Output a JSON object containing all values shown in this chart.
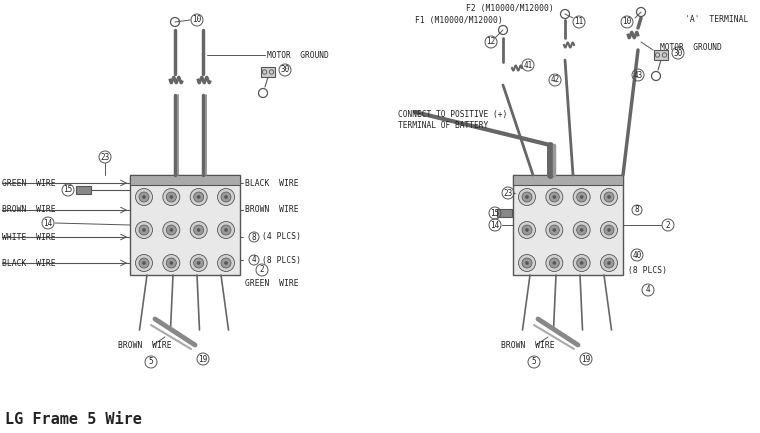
{
  "title": "LG Frame 5 Wire",
  "title_fontsize": 11,
  "bg_color": "#ffffff",
  "line_color": "#555555",
  "text_color": "#222222",
  "fs": 6.0,
  "f2_label": "F2 (M10000/M12000)",
  "f1_label": "F1 (M10000/M12000)",
  "a_terminal_label": "'A'  TERMINAL",
  "motor_ground": "MOTOR  GROUND",
  "connect_battery_1": "CONNECT TO POSITIVE (+)",
  "connect_battery_2": "TERMINAL OF BATTERY",
  "green_wire": "GREEN  WIRE",
  "brown_wire": "BROWN  WIRE",
  "white_wire": "WHITE  WIRE",
  "black_wire": "BLACK  WIRE",
  "black_wire2": "BLACK  WIRE",
  "brown_wire_btm": "BROWN  WIRE",
  "black_wire_r": "BLACK  WIRE",
  "brown_wire_r": "BROWN  WIRE",
  "eight_4plcs": "8 (4 PLCS)",
  "four_8plcs": "4 (8 PLCS)",
  "green_wire_r": "GREEN  WIRE",
  "forty_8plcs": "(8 PLCS)",
  "brown_wire_btm_r": "BROWN  WIRE"
}
